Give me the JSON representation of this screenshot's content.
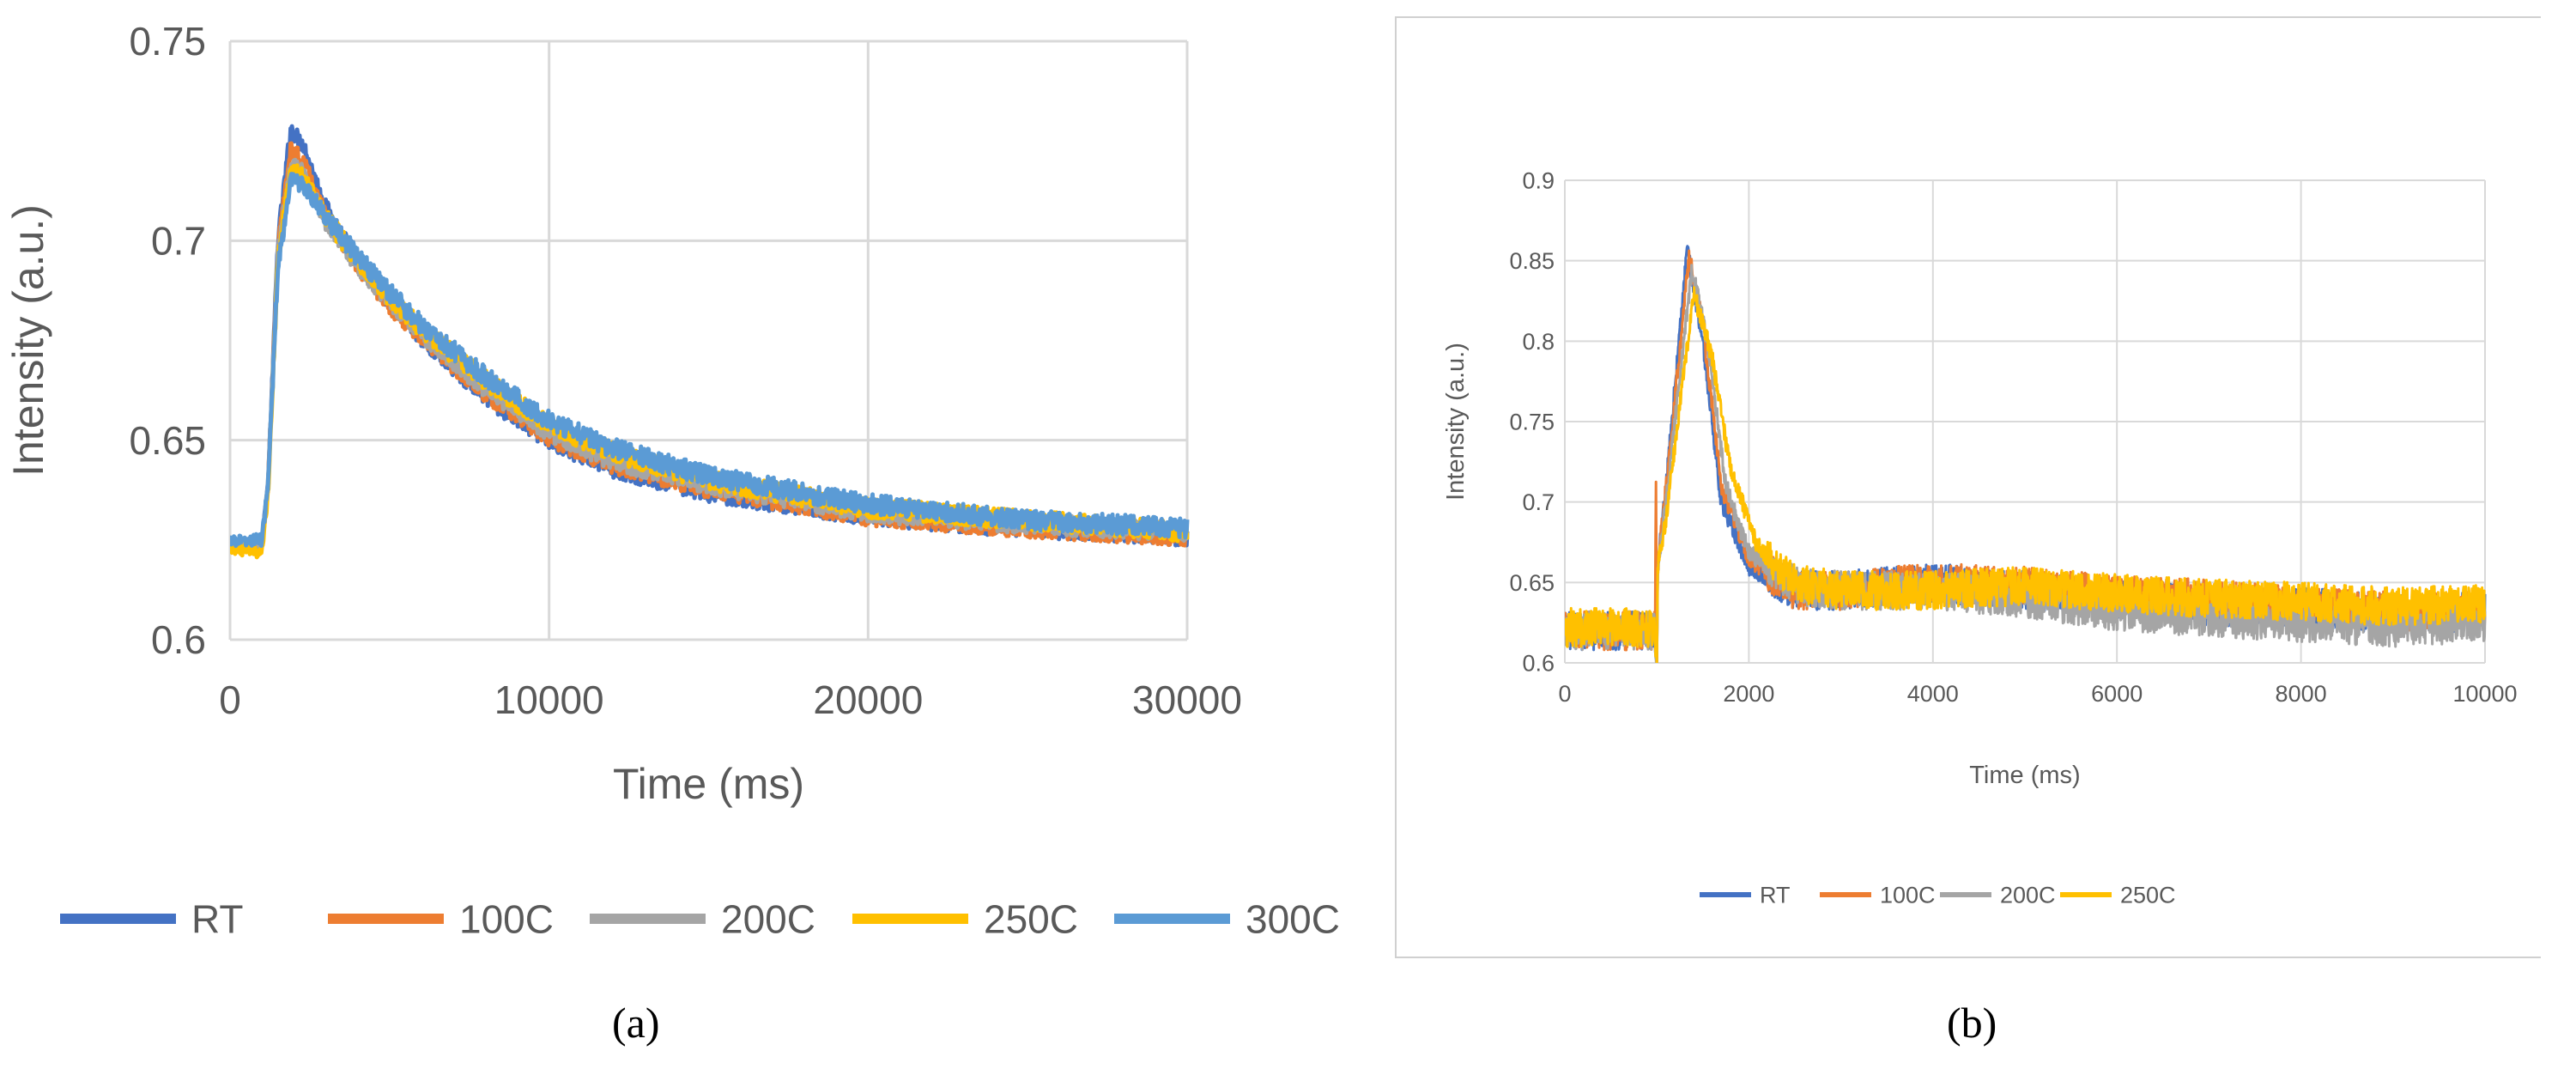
{
  "chart_data": [
    {
      "type": "line",
      "panel": "a",
      "xlabel": "Time (ms)",
      "ylabel": "Intensity (a.u.)",
      "xlim": [
        0,
        30000
      ],
      "ylim": [
        0.6,
        0.75
      ],
      "x_ticks": [
        "0",
        "10000",
        "20000",
        "30000"
      ],
      "y_ticks": [
        "0.6",
        "0.65",
        "0.7",
        "0.75"
      ],
      "grid": true,
      "legend": "bottom",
      "series": [
        {
          "name": "RT",
          "color": "#4472C4",
          "x": [
            0,
            1000,
            1200,
            1500,
            1900,
            2300,
            3000,
            4000,
            5000,
            6000,
            8000,
            10000,
            12000,
            15000,
            20000,
            25000,
            30000
          ],
          "y": [
            0.624,
            0.624,
            0.64,
            0.7,
            0.728,
            0.724,
            0.708,
            0.695,
            0.685,
            0.676,
            0.661,
            0.65,
            0.643,
            0.637,
            0.631,
            0.628,
            0.626
          ]
        },
        {
          "name": "100C",
          "color": "#ED7D31",
          "x": [
            0,
            1000,
            1200,
            1500,
            1900,
            2300,
            3000,
            4000,
            5000,
            6000,
            8000,
            10000,
            12000,
            15000,
            20000,
            25000,
            30000
          ],
          "y": [
            0.624,
            0.624,
            0.64,
            0.698,
            0.723,
            0.72,
            0.706,
            0.694,
            0.684,
            0.676,
            0.662,
            0.651,
            0.644,
            0.638,
            0.631,
            0.628,
            0.626
          ]
        },
        {
          "name": "200C",
          "color": "#A5A5A5",
          "x": [
            0,
            1000,
            1200,
            1500,
            1900,
            2300,
            3000,
            4000,
            5000,
            6000,
            8000,
            10000,
            12000,
            15000,
            20000,
            25000,
            30000
          ],
          "y": [
            0.624,
            0.624,
            0.64,
            0.697,
            0.719,
            0.717,
            0.705,
            0.694,
            0.685,
            0.677,
            0.663,
            0.652,
            0.645,
            0.639,
            0.632,
            0.629,
            0.627
          ]
        },
        {
          "name": "250C",
          "color": "#FFC000",
          "x": [
            0,
            1000,
            1200,
            1500,
            1900,
            2300,
            3000,
            4000,
            5000,
            6000,
            8000,
            10000,
            12000,
            15000,
            20000,
            25000,
            30000
          ],
          "y": [
            0.623,
            0.622,
            0.638,
            0.695,
            0.718,
            0.716,
            0.706,
            0.695,
            0.686,
            0.678,
            0.665,
            0.654,
            0.647,
            0.64,
            0.633,
            0.63,
            0.627
          ]
        },
        {
          "name": "300C",
          "color": "#5B9BD5",
          "x": [
            0,
            1000,
            1200,
            1500,
            1900,
            2300,
            3000,
            4000,
            5000,
            6000,
            8000,
            10000,
            12000,
            15000,
            20000,
            25000,
            30000
          ],
          "y": [
            0.625,
            0.625,
            0.64,
            0.693,
            0.715,
            0.714,
            0.706,
            0.696,
            0.687,
            0.679,
            0.666,
            0.655,
            0.648,
            0.641,
            0.634,
            0.63,
            0.628
          ]
        }
      ]
    },
    {
      "type": "line",
      "panel": "b",
      "xlabel": "Time (ms)",
      "ylabel": "Intensity (a.u.)",
      "xlim": [
        0,
        10000
      ],
      "ylim": [
        0.6,
        0.9
      ],
      "x_ticks": [
        "0",
        "2000",
        "4000",
        "6000",
        "8000",
        "10000"
      ],
      "y_ticks": [
        "0.6",
        "0.65",
        "0.7",
        "0.75",
        "0.8",
        "0.85",
        "0.9"
      ],
      "grid": true,
      "legend": "bottom",
      "series": [
        {
          "name": "RT",
          "color": "#4472C4",
          "x": [
            0,
            980,
            1000,
            1010,
            1100,
            1330,
            1500,
            1700,
            2000,
            2500,
            3000,
            4000,
            5000,
            6000,
            7000,
            8000,
            9000,
            10000
          ],
          "y": [
            0.62,
            0.62,
            0.6,
            0.66,
            0.71,
            0.857,
            0.8,
            0.7,
            0.66,
            0.645,
            0.645,
            0.65,
            0.645,
            0.64,
            0.635,
            0.635,
            0.63,
            0.632
          ]
        },
        {
          "name": "100C",
          "color": "#ED7D31",
          "x": [
            0,
            980,
            990,
            1000,
            1010,
            1100,
            1350,
            1500,
            1700,
            2000,
            2500,
            3000,
            4000,
            5000,
            6000,
            7000,
            8000,
            9000,
            10000
          ],
          "y": [
            0.62,
            0.62,
            0.722,
            0.6,
            0.66,
            0.71,
            0.853,
            0.81,
            0.71,
            0.665,
            0.645,
            0.645,
            0.65,
            0.648,
            0.642,
            0.64,
            0.635,
            0.632,
            0.633
          ]
        },
        {
          "name": "200C",
          "color": "#A5A5A5",
          "x": [
            0,
            980,
            1000,
            1010,
            1100,
            1380,
            1550,
            1750,
            2000,
            2500,
            3000,
            4000,
            5000,
            6000,
            7000,
            8000,
            9000,
            10000
          ],
          "y": [
            0.62,
            0.62,
            0.6,
            0.66,
            0.7,
            0.845,
            0.8,
            0.71,
            0.668,
            0.648,
            0.645,
            0.645,
            0.64,
            0.632,
            0.628,
            0.625,
            0.622,
            0.625
          ]
        },
        {
          "name": "250C",
          "color": "#FFC000",
          "x": [
            0,
            980,
            1000,
            1010,
            1100,
            1400,
            1600,
            1800,
            2100,
            2500,
            3000,
            4000,
            5000,
            6000,
            7000,
            8000,
            9000,
            10000
          ],
          "y": [
            0.622,
            0.622,
            0.6,
            0.66,
            0.69,
            0.83,
            0.79,
            0.72,
            0.672,
            0.65,
            0.645,
            0.645,
            0.648,
            0.643,
            0.64,
            0.638,
            0.635,
            0.637
          ]
        }
      ]
    }
  ],
  "captions": {
    "a": "(a)",
    "b": "(b)"
  }
}
